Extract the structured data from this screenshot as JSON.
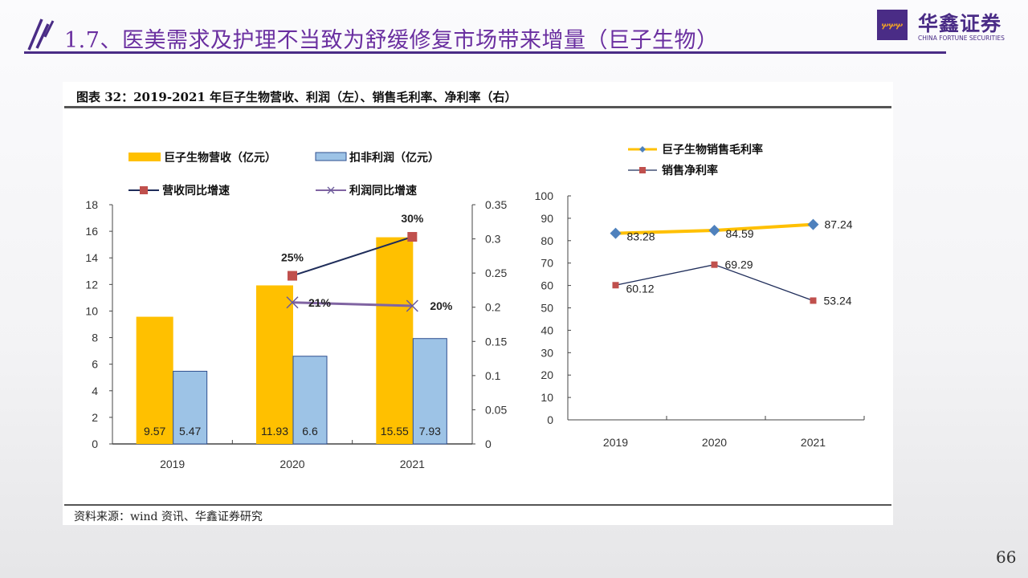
{
  "header": {
    "title": "1.7、医美需求及护理不当致为舒缓修复市场带来增量（巨子生物）",
    "logo_cn": "华鑫证券",
    "logo_en": "CHINA FORTUNE SECURITIES",
    "brand_color": "#4a2c86"
  },
  "figure": {
    "title": "图表 32：2019-2021 年巨子生物营收、利润（左）、销售毛利率、净利率（右）",
    "source": "资料来源：wind 资讯、华鑫证券研究"
  },
  "page_number": "66",
  "chart_data": [
    {
      "type": "bar",
      "categories": [
        "2019",
        "2020",
        "2021"
      ],
      "series": [
        {
          "name": "巨子生物营收（亿元）",
          "kind": "bar",
          "axis": "left",
          "values": [
            9.57,
            11.93,
            15.55
          ],
          "labels": [
            "9.57",
            "11.93",
            "15.55"
          ],
          "color": "#ffc000"
        },
        {
          "name": "扣非利润（亿元）",
          "kind": "bar",
          "axis": "left",
          "values": [
            5.47,
            6.6,
            7.93
          ],
          "labels": [
            "5.47",
            "6.6",
            "7.93"
          ],
          "color": "#9dc3e6"
        },
        {
          "name": "营收同比增速",
          "kind": "line",
          "axis": "right",
          "values": [
            null,
            0.246,
            0.303
          ],
          "labels": [
            "",
            "25%",
            "30%"
          ],
          "color": "#1f2d5a",
          "marker_color": "#c0504d"
        },
        {
          "name": "利润同比增速",
          "kind": "line",
          "axis": "right",
          "values": [
            null,
            0.207,
            0.202
          ],
          "labels": [
            "",
            "21%",
            "20%"
          ],
          "color": "#8064a2"
        }
      ],
      "left_axis": {
        "range": [
          0,
          18
        ],
        "ticks": [
          "0",
          "2",
          "4",
          "6",
          "8",
          "10",
          "12",
          "14",
          "16",
          "18"
        ]
      },
      "right_axis": {
        "range": [
          0,
          0.35
        ],
        "ticks": [
          "0",
          "0.05",
          "0.1",
          "0.15",
          "0.2",
          "0.25",
          "0.3",
          "0.35"
        ]
      },
      "legend": "top",
      "grid": false
    },
    {
      "type": "line",
      "categories": [
        "2019",
        "2020",
        "2021"
      ],
      "series": [
        {
          "name": "巨子生物销售毛利率",
          "values": [
            83.28,
            84.59,
            87.24
          ],
          "labels": [
            "83.28",
            "84.59",
            "87.24"
          ],
          "color": "#ffc000",
          "marker_color": "#4f81bd"
        },
        {
          "name": "销售净利率",
          "values": [
            60.12,
            69.29,
            53.24
          ],
          "labels": [
            "60.12",
            "69.29",
            "53.24"
          ],
          "color": "#1f2d5a",
          "marker_color": "#c0504d"
        }
      ],
      "y_axis": {
        "range": [
          0,
          100
        ],
        "ticks": [
          "0",
          "10",
          "20",
          "30",
          "40",
          "50",
          "60",
          "70",
          "80",
          "90",
          "100"
        ]
      },
      "legend": "top",
      "grid": false
    }
  ]
}
